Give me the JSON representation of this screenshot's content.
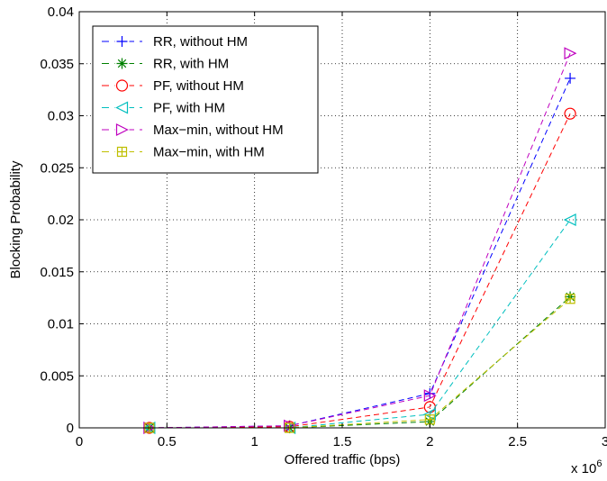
{
  "chart_data": {
    "type": "line",
    "title": "",
    "xlabel": "Offered traffic (bps)",
    "ylabel": "Blocking Probability",
    "x_multiplier_label": "x 10",
    "x_multiplier_exponent": "6",
    "xlim": [
      0,
      3
    ],
    "ylim": [
      0,
      0.04
    ],
    "xticks": [
      "0",
      "0.5",
      "1",
      "1.5",
      "2",
      "2.5",
      "3"
    ],
    "yticks": [
      "0",
      "0.005",
      "0.01",
      "0.015",
      "0.02",
      "0.025",
      "0.03",
      "0.035",
      "0.04"
    ],
    "grid": true,
    "legend_position": "top-left",
    "x": [
      0.4,
      1.2,
      2.0,
      2.8
    ],
    "series": [
      {
        "name": "RR, without HM",
        "color": "#0000ff",
        "marker": "plus",
        "values": [
          0.0,
          0.0002,
          0.0033,
          0.0336
        ]
      },
      {
        "name": "RR, with HM",
        "color": "#008000",
        "marker": "star",
        "values": [
          0.0,
          0.0,
          0.0006,
          0.0126
        ]
      },
      {
        "name": "PF, without HM",
        "color": "#ff0000",
        "marker": "circle",
        "values": [
          0.0,
          0.0001,
          0.002,
          0.0302
        ]
      },
      {
        "name": "PF, with HM",
        "color": "#00bfbf",
        "marker": "triangle-left",
        "values": [
          0.0,
          0.0,
          0.0013,
          0.02
        ]
      },
      {
        "name": "Max−min, without HM",
        "color": "#bf00bf",
        "marker": "triangle-right",
        "values": [
          0.0,
          0.0002,
          0.0031,
          0.036
        ]
      },
      {
        "name": "Max−min, with HM",
        "color": "#bfbf00",
        "marker": "square",
        "values": [
          0.0,
          0.0,
          0.0008,
          0.0124
        ]
      }
    ]
  }
}
